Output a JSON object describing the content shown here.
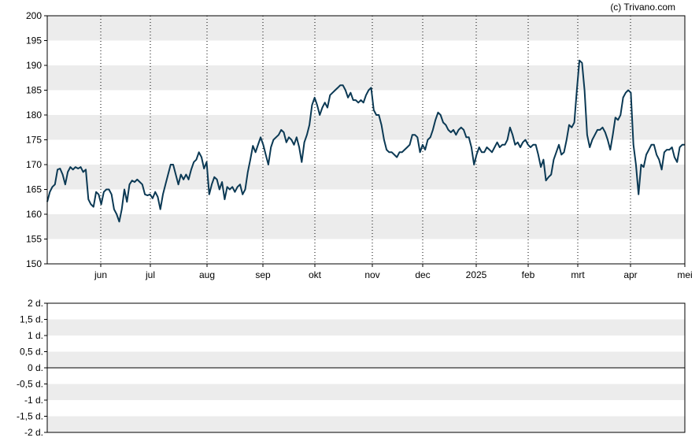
{
  "credit": "(c) Trivano.com",
  "chart_data": [
    {
      "type": "line",
      "title": "",
      "xlabel": "",
      "ylabel": "",
      "ylim": [
        150,
        200
      ],
      "yticks": [
        150,
        155,
        160,
        165,
        170,
        175,
        180,
        185,
        190,
        195,
        200
      ],
      "xtick_labels": [
        "jun",
        "jul",
        "aug",
        "sep",
        "okt",
        "nov",
        "dec",
        "2025",
        "feb",
        "mrt",
        "apr",
        "mei"
      ],
      "grid": "horizontal bands, vertical dotted at month ticks",
      "line_color": "#0b3954",
      "series": [
        {
          "values": [
            162.5,
            164.5,
            165.5,
            166,
            169,
            169.2,
            168,
            166,
            168.5,
            169.5,
            169,
            169.5,
            169.2,
            169.5,
            168.5,
            169,
            163,
            162,
            161.5,
            164.5,
            164,
            162,
            164.5,
            165,
            165,
            164,
            161,
            160,
            158.5,
            161,
            165,
            162.5,
            166,
            166.8,
            166.5,
            167,
            166.5,
            166,
            164,
            163.8,
            164,
            163.2,
            164.5,
            163.5,
            161,
            164,
            166,
            168,
            170,
            170,
            168,
            166,
            168,
            167,
            168,
            167,
            169,
            170.5,
            171,
            172.5,
            171.5,
            169.2,
            170.5,
            164,
            166,
            167.5,
            167,
            165,
            166.5,
            163,
            165.5,
            165,
            165.5,
            164.5,
            165.5,
            166,
            164,
            165,
            168.5,
            171,
            173.8,
            172.5,
            174,
            175.5,
            174,
            172,
            170,
            173.5,
            175,
            175.5,
            176,
            177,
            176.5,
            174.5,
            175.5,
            175,
            174,
            175.5,
            173.5,
            170.5,
            174.5,
            176,
            178,
            182,
            183.5,
            182,
            180,
            181.5,
            182.5,
            181.5,
            184,
            184.5,
            185,
            185.5,
            186,
            186,
            185,
            183.5,
            184.5,
            183,
            183,
            182.5,
            183,
            182.5,
            184,
            185,
            185.5,
            181,
            180,
            180,
            178,
            175,
            173,
            172.5,
            172.5,
            172,
            171.5,
            172.5,
            172.5,
            173,
            173.5,
            174,
            176,
            176,
            175.5,
            172.5,
            174,
            173,
            175,
            175.5,
            177,
            179,
            180.5,
            180,
            178.5,
            178,
            177,
            176.5,
            177,
            176,
            177,
            177.5,
            177,
            175.5,
            175.5,
            173.5,
            170,
            172,
            173.5,
            172.5,
            172.5,
            173.5,
            173,
            172.5,
            173.5,
            174.5,
            173.5,
            174,
            174,
            175,
            177.5,
            176,
            174,
            174.5,
            173.5,
            174.5,
            175,
            174,
            173.5,
            174,
            174,
            172,
            169.5,
            171,
            166.8,
            167.5,
            168,
            171,
            172.5,
            174,
            172,
            172.5,
            175,
            178,
            177.5,
            178.5,
            185,
            191,
            190.5,
            185,
            176,
            173.5,
            175,
            176,
            177,
            177,
            177.5,
            176.5,
            175,
            173,
            176,
            179.5,
            179,
            180,
            183.5,
            184.5,
            185,
            184.5,
            174,
            170,
            164,
            170,
            169.5,
            172,
            173,
            174,
            174,
            172,
            171,
            169,
            172.5,
            173,
            173,
            173.5,
            171.5,
            170.5,
            173.5,
            174,
            174
          ]
        }
      ]
    },
    {
      "type": "line",
      "title": "",
      "xlabel": "",
      "ylabel": "",
      "ylim": [
        -2,
        2
      ],
      "yticks": [
        -2,
        -1.5,
        -1,
        -0.5,
        0,
        0.5,
        1,
        1.5,
        2
      ],
      "ytick_labels": [
        "-2 d.",
        "-1,5 d.",
        "-1 d.",
        "-0,5 d.",
        "0 d.",
        "0,5 d.",
        "1 d.",
        "1,5 d.",
        "2 d."
      ],
      "grid": "horizontal bands",
      "series": [
        {
          "values": []
        }
      ]
    }
  ]
}
